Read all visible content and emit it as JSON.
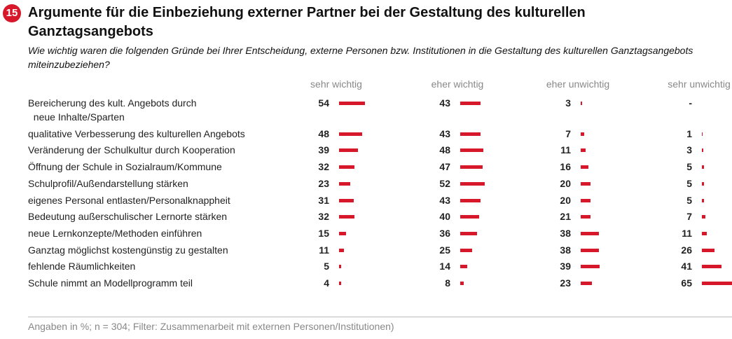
{
  "badge": "15",
  "chart_data": {
    "type": "bar",
    "orientation": "horizontal",
    "title": "Argumente für die Einbeziehung externer Partner bei der Gestaltung des kulturellen Ganztagsangebots",
    "subtitle": "Wie wichtig waren die folgenden Gründe bei Ihrer Entscheidung, externe Personen bzw. Institutionen in die Gestaltung des kulturellen Ganztagsangebots miteinzubeziehen?",
    "categories": [
      "Bereicherung des kult. Angebots durch\n  neue Inhalte/Sparten",
      "qualitative Verbesserung des kulturellen Angebots",
      "Veränderung der Schulkultur durch Kooperation",
      "Öffnung der Schule in Sozialraum/Kommune",
      "Schulprofil/Außendarstellung stärken",
      "eigenes Personal entlasten/Personalknappheit",
      "Bedeutung außerschulischer Lernorte stärken",
      "neue Lernkonzepte/Methoden einführen",
      "Ganztag möglichst kostengünstig zu gestalten",
      "fehlende Räumlichkeiten",
      "Schule nimmt an Modellprogramm teil"
    ],
    "series": [
      {
        "name": "sehr wichtig",
        "color": "#d7182a",
        "values": [
          54,
          48,
          39,
          32,
          23,
          31,
          32,
          15,
          11,
          5,
          4
        ]
      },
      {
        "name": "eher wichtig",
        "color": "#d7182a",
        "values": [
          43,
          43,
          48,
          47,
          52,
          43,
          40,
          36,
          25,
          14,
          8
        ]
      },
      {
        "name": "eher unwichtig",
        "color": "#d7182a",
        "values": [
          3,
          7,
          11,
          16,
          20,
          20,
          21,
          38,
          38,
          39,
          23
        ]
      },
      {
        "name": "sehr unwichtig",
        "color": "#d7182a",
        "values": [
          null,
          1,
          3,
          5,
          5,
          5,
          7,
          11,
          26,
          41,
          65
        ],
        "value_labels": [
          "-",
          "1",
          "3",
          "5",
          "5",
          "5",
          "7",
          "11",
          "26",
          "41",
          "65"
        ]
      }
    ],
    "footnote": "Angaben in %; n = 304; Filter: Zusammenarbeit mit externen Personen/Institutionen)"
  }
}
